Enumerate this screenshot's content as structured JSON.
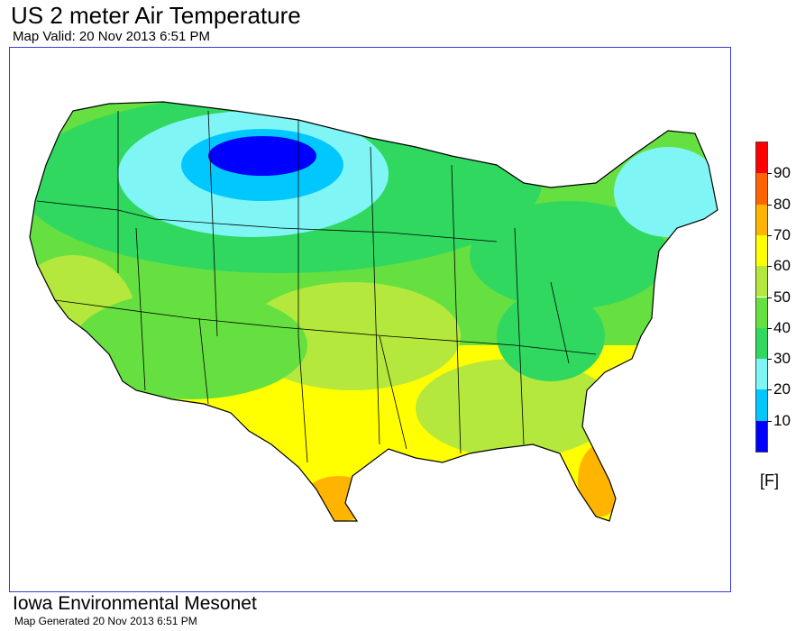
{
  "header": {
    "title": "US 2 meter Air Temperature",
    "subtitle": "Map Valid: 20 Nov 2013 6:51 PM"
  },
  "legend": {
    "units": "[F]",
    "tick_labels": [
      "90",
      "80",
      "70",
      "60",
      "50",
      "40",
      "30",
      "20",
      "10"
    ],
    "bins": [
      {
        "from": 0,
        "to": 10,
        "color": "#0000ff"
      },
      {
        "from": 10,
        "to": 20,
        "color": "#00c8ff"
      },
      {
        "from": 20,
        "to": 30,
        "color": "#7ff5f5"
      },
      {
        "from": 30,
        "to": 40,
        "color": "#30d860"
      },
      {
        "from": 40,
        "to": 50,
        "color": "#66e040"
      },
      {
        "from": 50,
        "to": 60,
        "color": "#b4e83c"
      },
      {
        "from": 60,
        "to": 70,
        "color": "#ffff00"
      },
      {
        "from": 70,
        "to": 80,
        "color": "#ffb400"
      },
      {
        "from": 80,
        "to": 90,
        "color": "#ff6400"
      },
      {
        "from": 90,
        "to": 100,
        "color": "#ff0000"
      }
    ]
  },
  "map": {
    "frame_color": "#3a3adf",
    "boundary_color": "#000000"
  },
  "footer": {
    "organization": "Iowa Environmental Mesonet",
    "generated": "Map Generated 20 Nov 2013 6:51 PM"
  }
}
